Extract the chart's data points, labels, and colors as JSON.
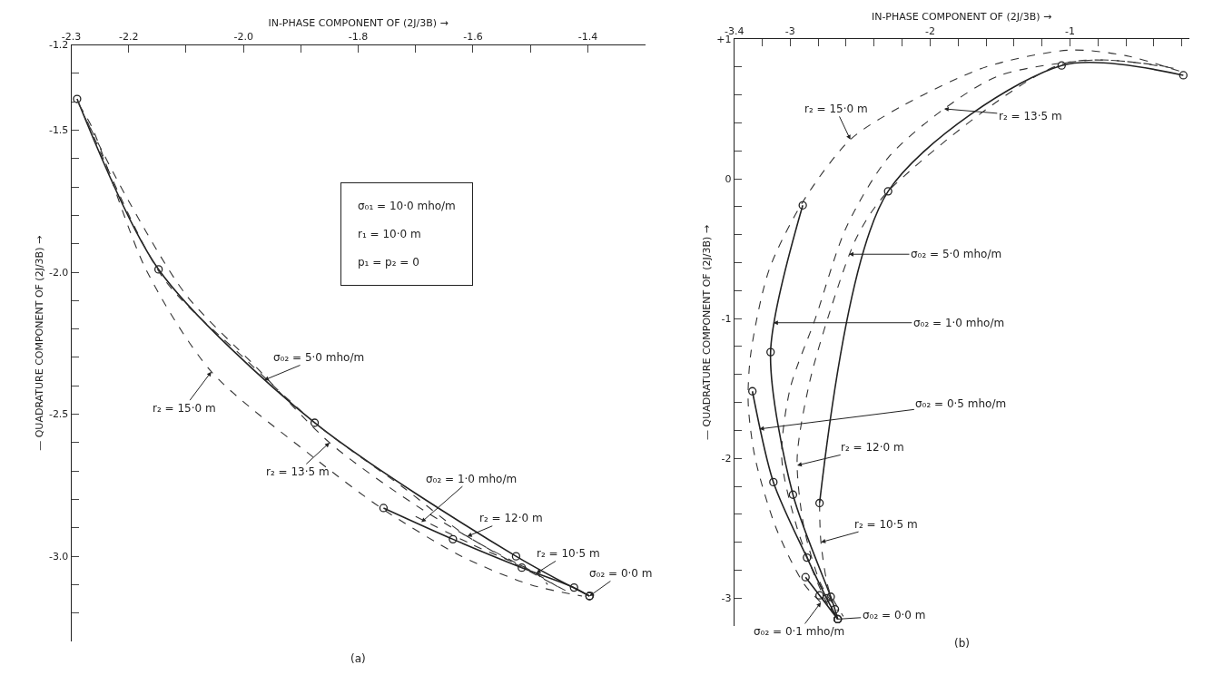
{
  "chart_data": [
    {
      "type": "line",
      "title": "(a)",
      "xlabel": "IN-PHASE COMPONENT OF (2J/3B) →",
      "ylabel": "— QUADRATURE COMPONENT OF (2J/3B) →",
      "xlim": [
        -2.3,
        -1.3
      ],
      "ylim": [
        -3.3,
        -1.2
      ],
      "xticks": [
        -2.3,
        -2.2,
        {
          "value": -2.1,
          "label": null
        },
        {
          "value": -2,
          "label": "-2.0"
        },
        {
          "value": -1.9,
          "label": null
        },
        -1.8,
        {
          "value": -1.7,
          "label": null
        },
        -1.6,
        {
          "value": -1.5,
          "label": null
        },
        -1.4
      ],
      "yticks": [
        -1.2,
        {
          "value": -1.3,
          "label": null
        },
        {
          "value": -1.4,
          "label": null
        },
        -1.5,
        {
          "value": -1.6,
          "label": null
        },
        {
          "value": -1.7,
          "label": null
        },
        {
          "value": -1.8,
          "label": null
        },
        {
          "value": -1.9,
          "label": null
        },
        {
          "value": -2,
          "label": "-2.0"
        },
        {
          "value": -2.1,
          "label": null
        },
        {
          "value": -2.2,
          "label": null
        },
        {
          "value": -2.3,
          "label": null
        },
        {
          "value": -2.4,
          "label": null
        },
        -2.5,
        {
          "value": -2.6,
          "label": null
        },
        {
          "value": -2.7,
          "label": null
        },
        {
          "value": -2.8,
          "label": null
        },
        {
          "value": -2.9,
          "label": null
        },
        {
          "value": -3,
          "label": "-3.0"
        },
        {
          "value": -3.1,
          "label": null
        },
        {
          "value": -3.2,
          "label": null
        }
      ],
      "series": [
        {
          "x": [
            -2.29,
            -2.148,
            -1.876,
            -1.525,
            -1.397
          ],
          "values": [
            -1.39,
            -1.99,
            -2.53,
            -3.0,
            -3.14
          ],
          "color": "#222222",
          "line_style": "solid",
          "marker": "circle"
        },
        {
          "x": [
            -1.756,
            -1.635,
            -1.515,
            -1.424,
            -1.397
          ],
          "values": [
            -2.83,
            -2.94,
            -3.04,
            -3.11,
            -3.14
          ],
          "color": "#222222",
          "line_style": "solid",
          "marker": "circle"
        },
        {
          "x": [
            -2.287,
            -2.264,
            -2.17,
            -2.056,
            -1.879,
            -1.76,
            -1.62,
            -1.5,
            -1.41
          ],
          "values": [
            -1.41,
            -1.49,
            -1.99,
            -2.35,
            -2.65,
            -2.83,
            -3.0,
            -3.1,
            -3.14
          ],
          "color": "#333333",
          "line_style": "dashed",
          "marker": "none"
        },
        {
          "x": [
            -2.28,
            -2.2,
            -2.1,
            -1.98,
            -1.85,
            -1.7,
            -1.55,
            -1.43
          ],
          "values": [
            -1.44,
            -1.75,
            -2.08,
            -2.33,
            -2.6,
            -2.82,
            -3.0,
            -3.13
          ],
          "color": "#333333",
          "line_style": "dashed",
          "marker": "none"
        },
        {
          "x": [
            -2.272,
            -2.14,
            -2.0,
            -1.87,
            -1.72,
            -1.61,
            -1.5,
            -1.45
          ],
          "values": [
            -1.47,
            -2.02,
            -2.3,
            -2.54,
            -2.76,
            -2.93,
            -3.05,
            -3.11
          ],
          "color": "#333333",
          "line_style": "dashed",
          "marker": "none"
        },
        {
          "x": [
            -1.7,
            -1.6,
            -1.49,
            -1.47
          ],
          "values": [
            -2.86,
            -2.96,
            -3.06,
            -3.1
          ],
          "color": "#333333",
          "line_style": "dashed",
          "marker": "none"
        }
      ],
      "annotations": [
        {
          "text": "σ₀₂ = 5·0 mho/m",
          "x": -1.964,
          "y": -2.38
        },
        {
          "text": "r₂ = 15·0 m",
          "x": -2.056,
          "y": -2.35
        },
        {
          "text": "r₂ = 13·5 m",
          "x": -1.85,
          "y": -2.6
        },
        {
          "text": "σ₀₂ = 1·0 mho/m",
          "x": -1.69,
          "y": -2.88
        },
        {
          "text": "r₂ = 12·0 m",
          "x": -1.61,
          "y": -2.93
        },
        {
          "text": "r₂ = 10·5 m",
          "x": -1.49,
          "y": -3.06
        },
        {
          "text": "σ₀₂ = 0·0 m",
          "x": -1.397,
          "y": -3.14
        },
        "σ₀₁ = 10·0 mho/m",
        "r₁ = 10·0 m",
        "p₁ = p₂ = 0"
      ]
    },
    {
      "type": "line",
      "title": "(b)",
      "xlabel": "IN-PHASE COMPONENT OF (2J/3B) →",
      "ylabel": "— QUADRATURE COMPONENT OF (2J/3B) →",
      "xlim": [
        -3.4,
        -0.15
      ],
      "ylim": [
        -3.2,
        1
      ],
      "xticks": [
        -3.4,
        {
          "value": -3.2,
          "label": null
        },
        -3,
        {
          "value": -2.8,
          "label": null
        },
        {
          "value": -2.6,
          "label": null
        },
        {
          "value": -2.4,
          "label": null
        },
        {
          "value": -2.2,
          "label": null
        },
        -2,
        {
          "value": -1.8,
          "label": null
        },
        {
          "value": -1.6,
          "label": null
        },
        {
          "value": -1.4,
          "label": null
        },
        {
          "value": -1.2,
          "label": null
        },
        -1,
        {
          "value": -0.8,
          "label": null
        },
        {
          "value": -0.6,
          "label": null
        },
        {
          "value": -0.4,
          "label": null
        },
        {
          "value": -0.2,
          "label": null
        }
      ],
      "yticks": [
        {
          "value": 1,
          "label": "+1"
        },
        {
          "value": 0.8,
          "label": null
        },
        {
          "value": 0.6,
          "label": null
        },
        {
          "value": 0.4,
          "label": null
        },
        {
          "value": 0.2,
          "label": null
        },
        0,
        {
          "value": -0.2,
          "label": null
        },
        {
          "value": -0.4,
          "label": null
        },
        {
          "value": -0.6,
          "label": null
        },
        {
          "value": -0.8,
          "label": null
        },
        -1,
        {
          "value": -1.2,
          "label": null
        },
        {
          "value": -1.4,
          "label": null
        },
        {
          "value": -1.6,
          "label": null
        },
        {
          "value": -1.8,
          "label": null
        },
        -2,
        {
          "value": -2.2,
          "label": null
        },
        {
          "value": -2.4,
          "label": null
        },
        {
          "value": -2.6,
          "label": null
        },
        {
          "value": -2.8,
          "label": null
        },
        -3
      ],
      "series": [
        {
          "x": [
            -0.19,
            -1.06,
            -2.3,
            -2.79
          ],
          "values": [
            0.74,
            0.81,
            -0.09,
            -2.32
          ],
          "color": "#222222",
          "line_style": "solid",
          "marker": "circle"
        },
        {
          "x": [
            -2.91,
            -3.14,
            -2.98,
            -2.71,
            -2.68,
            -2.66
          ],
          "values": [
            -0.19,
            -1.24,
            -2.26,
            -2.99,
            -3.08,
            -3.15
          ],
          "color": "#222222",
          "line_style": "solid",
          "marker": "circle"
        },
        {
          "x": [
            -3.27,
            -3.12,
            -2.88,
            -2.74,
            -2.66
          ],
          "values": [
            -1.52,
            -2.17,
            -2.71,
            -3.0,
            -3.15
          ],
          "color": "#222222",
          "line_style": "solid",
          "marker": "circle"
        },
        {
          "x": [
            -2.89,
            -2.79,
            -2.66
          ],
          "values": [
            -2.85,
            -2.98,
            -3.15
          ],
          "color": "#222222",
          "line_style": "solid",
          "marker": "circle"
        },
        {
          "x": [
            -0.22,
            -0.6,
            -1.0,
            -1.6,
            -2.2,
            -2.57,
            -2.9,
            -3.15,
            -3.28,
            -3.3,
            -3.25,
            -3.1,
            -2.9,
            -2.76
          ],
          "values": [
            0.77,
            0.88,
            0.92,
            0.8,
            0.52,
            0.28,
            -0.15,
            -0.65,
            -1.24,
            -1.6,
            -2.0,
            -2.5,
            -2.9,
            -3.05
          ],
          "color": "#333333",
          "line_style": "dashed",
          "marker": "none"
        },
        {
          "x": [
            -0.26,
            -0.79,
            -1.5,
            -1.9,
            -2.3,
            -2.6,
            -2.82,
            -3.0,
            -3.06,
            -2.95,
            -2.8,
            -2.71
          ],
          "values": [
            0.79,
            0.85,
            0.74,
            0.5,
            0.15,
            -0.35,
            -1.0,
            -1.5,
            -2.0,
            -2.5,
            -2.9,
            -3.09
          ],
          "color": "#333333",
          "line_style": "dashed",
          "marker": "none"
        },
        {
          "x": [
            -0.3,
            -1.06,
            -2.3,
            -2.52,
            -2.7,
            -2.86,
            -2.95,
            -2.9,
            -2.78,
            -2.66
          ],
          "values": [
            0.8,
            0.82,
            -0.09,
            -0.41,
            -0.9,
            -1.45,
            -2.0,
            -2.5,
            -2.9,
            -3.09
          ],
          "color": "#333333",
          "line_style": "dashed",
          "marker": "none"
        },
        {
          "x": [
            -2.79,
            -2.78,
            -2.72,
            -2.62
          ],
          "values": [
            -2.32,
            -2.6,
            -2.95,
            -3.13
          ],
          "color": "#333333",
          "line_style": "dashed",
          "marker": "none"
        }
      ],
      "annotations": [
        {
          "text": "r₂ = 15·0 m",
          "x": -2.57,
          "y": 0.28
        },
        {
          "text": "r₂ = 13·5 m",
          "x": -1.9,
          "y": 0.5
        },
        {
          "text": "σ₀₂ = 5·0 mho/m",
          "x": -2.58,
          "y": -0.54
        },
        {
          "text": "σ₀₂ = 1·0 mho/m",
          "x": -3.12,
          "y": -1.03
        },
        {
          "text": "σ₀₂ = 0·5 mho/m",
          "x": -3.22,
          "y": -1.79
        },
        {
          "text": "r₂ = 12·0 m",
          "x": -2.95,
          "y": -2.05
        },
        {
          "text": "r₂ = 10·5 m",
          "x": -2.78,
          "y": -2.6
        },
        {
          "text": "σ₀₂ = 0·0 m",
          "x": -2.66,
          "y": -3.15
        },
        {
          "text": "σ₀₂ = 0·1 mho/m",
          "x": -2.78,
          "y": -3.03
        }
      ]
    }
  ]
}
